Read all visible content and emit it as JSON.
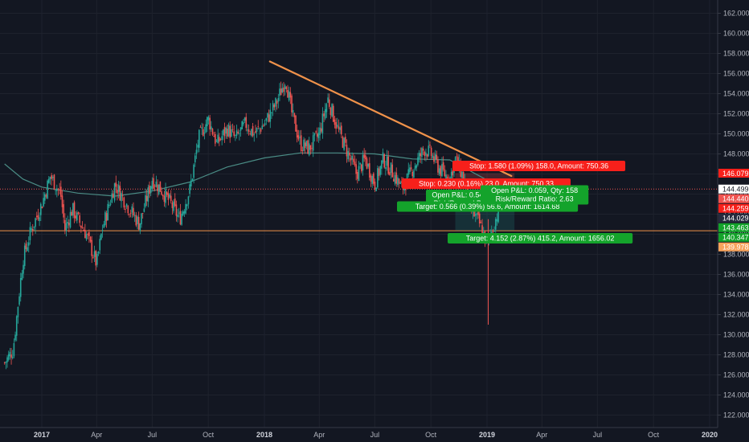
{
  "colors": {
    "background": "#131722",
    "grid": "#1e222d",
    "up": "#26a69a",
    "down": "#ef5350",
    "ma": "#4a8c85",
    "trendline": "#f0924a",
    "stop_red": "#f7201b",
    "target_green": "#14a32b",
    "axis_text": "#b2b5be"
  },
  "chart_data": {
    "type": "candlestick",
    "title": "",
    "xlabel": "",
    "ylabel": "",
    "ylim": [
      120.5,
      163.5
    ],
    "x_ticks": [
      {
        "label": "2017",
        "x": "2017-01"
      },
      {
        "label": "Apr",
        "x": "2017-04"
      },
      {
        "label": "Jul",
        "x": "2017-07"
      },
      {
        "label": "Oct",
        "x": "2017-10"
      },
      {
        "label": "2018",
        "x": "2018-01"
      },
      {
        "label": "Apr",
        "x": "2018-04"
      },
      {
        "label": "Jul",
        "x": "2018-07"
      },
      {
        "label": "Oct",
        "x": "2018-10"
      },
      {
        "label": "2019",
        "x": "2019-01"
      },
      {
        "label": "Apr",
        "x": "2019-04"
      },
      {
        "label": "Jul",
        "x": "2019-07"
      },
      {
        "label": "Oct",
        "x": "2019-10"
      },
      {
        "label": "2020",
        "x": "2020-01"
      }
    ],
    "y_ticks": [
      "122.000",
      "124.000",
      "126.000",
      "128.000",
      "130.000",
      "132.000",
      "134.000",
      "136.000",
      "138.000",
      "140.000",
      "142.000",
      "144.000",
      "146.000",
      "148.000",
      "150.000",
      "152.000",
      "154.000",
      "156.000",
      "158.000",
      "160.000",
      "162.000"
    ],
    "price_path": [
      {
        "x": "2016-11",
        "close": 127.2
      },
      {
        "x": "2016-11-15",
        "close": 128.5
      },
      {
        "x": "2016-12",
        "close": 137.5
      },
      {
        "x": "2016-12-15",
        "close": 140.5
      },
      {
        "x": "2017-01",
        "close": 143.0
      },
      {
        "x": "2017-01-15",
        "close": 145.8
      },
      {
        "x": "2017-02",
        "close": 144.0
      },
      {
        "x": "2017-02-08",
        "close": 140.5
      },
      {
        "x": "2017-02-20",
        "close": 142.5
      },
      {
        "x": "2017-03",
        "close": 141.5
      },
      {
        "x": "2017-03-15",
        "close": 140.0
      },
      {
        "x": "2017-04-01",
        "close": 137.0
      },
      {
        "x": "2017-04-10",
        "close": 140.5
      },
      {
        "x": "2017-05",
        "close": 145.0
      },
      {
        "x": "2017-05-20",
        "close": 143.0
      },
      {
        "x": "2017-06-10",
        "close": 141.0
      },
      {
        "x": "2017-07",
        "close": 145.5
      },
      {
        "x": "2017-07-15",
        "close": 144.5
      },
      {
        "x": "2017-08",
        "close": 143.0
      },
      {
        "x": "2017-08-15",
        "close": 141.5
      },
      {
        "x": "2017-09",
        "close": 144.5
      },
      {
        "x": "2017-09-15",
        "close": 149.5
      },
      {
        "x": "2017-10",
        "close": 151.5
      },
      {
        "x": "2017-10-15",
        "close": 149.0
      },
      {
        "x": "2017-11",
        "close": 150.5
      },
      {
        "x": "2017-11-15",
        "close": 149.5
      },
      {
        "x": "2017-12",
        "close": 151.0
      },
      {
        "x": "2017-12-15",
        "close": 150.0
      },
      {
        "x": "2018-01",
        "close": 151.0
      },
      {
        "x": "2018-01-20",
        "close": 153.0
      },
      {
        "x": "2018-02-05",
        "close": 155.5
      },
      {
        "x": "2018-02-15",
        "close": 152.0
      },
      {
        "x": "2018-03",
        "close": 149.0
      },
      {
        "x": "2018-03-15",
        "close": 148.5
      },
      {
        "x": "2018-04",
        "close": 150.0
      },
      {
        "x": "2018-04-15",
        "close": 153.5
      },
      {
        "x": "2018-05",
        "close": 150.5
      },
      {
        "x": "2018-05-15",
        "close": 148.5
      },
      {
        "x": "2018-06",
        "close": 146.0
      },
      {
        "x": "2018-06-15",
        "close": 147.5
      },
      {
        "x": "2018-07",
        "close": 145.0
      },
      {
        "x": "2018-07-15",
        "close": 147.5
      },
      {
        "x": "2018-08",
        "close": 146.0
      },
      {
        "x": "2018-08-15",
        "close": 144.5
      },
      {
        "x": "2018-09",
        "close": 146.5
      },
      {
        "x": "2018-09-20",
        "close": 148.5
      },
      {
        "x": "2018-10",
        "close": 148.0
      },
      {
        "x": "2018-10-15",
        "close": 146.5
      },
      {
        "x": "2018-11",
        "close": 145.5
      },
      {
        "x": "2018-11-10",
        "close": 147.5
      },
      {
        "x": "2018-11-25",
        "close": 145.5
      },
      {
        "x": "2018-12",
        "close": 143.0
      },
      {
        "x": "2018-12-20",
        "close": 141.0
      },
      {
        "x": "2019-01",
        "close": 139.0
      },
      {
        "x": "2019-01-10",
        "close": 140.5
      },
      {
        "x": "2019-01-20",
        "close": 142.5
      },
      {
        "x": "2019-02",
        "close": 144.0
      },
      {
        "x": "2019-02-15",
        "close": 143.5
      },
      {
        "x": "2019-03-01",
        "close": 144.0
      }
    ],
    "ma_path": [
      {
        "x": "2016-11",
        "value": 147.0
      },
      {
        "x": "2016-12",
        "value": 145.5
      },
      {
        "x": "2017-01",
        "value": 144.7
      },
      {
        "x": "2017-03",
        "value": 144.1
      },
      {
        "x": "2017-05",
        "value": 143.8
      },
      {
        "x": "2017-07",
        "value": 144.3
      },
      {
        "x": "2017-09",
        "value": 145.2
      },
      {
        "x": "2017-11",
        "value": 146.7
      },
      {
        "x": "2018-01",
        "value": 147.6
      },
      {
        "x": "2018-03",
        "value": 148.1
      },
      {
        "x": "2018-05",
        "value": 148.1
      },
      {
        "x": "2018-07",
        "value": 148.0
      },
      {
        "x": "2018-09",
        "value": 147.5
      },
      {
        "x": "2018-11",
        "value": 147.4
      },
      {
        "x": "2019-01",
        "value": 145.4
      },
      {
        "x": "2019-02-20",
        "value": 144.8
      }
    ],
    "spike_low": {
      "x": "2019-01-03",
      "value": 131.0
    },
    "trendline": {
      "x1": "2018-01-10",
      "y1": 157.2,
      "x2": "2019-02-10",
      "y2": 145.8
    },
    "horizontal_lines": [
      {
        "name": "level-upper",
        "value": 144.499,
        "style": "dotted",
        "color": "#ef5350"
      },
      {
        "name": "level-lower",
        "value": 140.347,
        "style": "solid",
        "color": "#f0924a"
      }
    ],
    "price_labels": [
      {
        "text": "146.079",
        "value": 146.079,
        "bg": "#f7201b"
      },
      {
        "text": "144.499",
        "value": 144.499,
        "bg": "#ffffff",
        "fg": "#131722"
      },
      {
        "text": "144.440",
        "value": 144.44,
        "bg": "#ef5350"
      },
      {
        "text": "144.259",
        "value": 144.259,
        "bg": "#f7201b"
      },
      {
        "text": "144.029",
        "value": 144.029,
        "bg": "#262b3e"
      },
      {
        "text": "143.463",
        "value": 143.463,
        "bg": "#14a32b"
      },
      {
        "text": "140.347",
        "value": 140.347,
        "bg": "#14a32b"
      },
      {
        "text": "139.978",
        "value": 139.978,
        "bg": "#f7a35c"
      }
    ],
    "positions": [
      {
        "name": "position-1",
        "entry": 144.499,
        "stop": 146.079,
        "target": 140.347,
        "x_start": "2018-11-10",
        "x_end": "2019-02-15",
        "stop_label": "Stop: 1.580 (1.09%) 158.0, Amount: 750.36",
        "target_label": "Target: 4.152 (2.87%) 415.2, Amount: 1656.02",
        "pnl_label": "Open P&L: 0.059, Qty: 158",
        "rr_label": "Risk/Reward Ratio: 2.63"
      },
      {
        "name": "position-2",
        "entry": 144.029,
        "stop": 144.259,
        "target": 143.463,
        "x_start": "2018-10-10",
        "x_end": "2018-12-01",
        "stop_label": "Stop: 0.230 (0.16%) 23.0, Amount: 750.33",
        "target_label": "Target: 0.566 (0.39%) 56.6, Amount: 1614.68",
        "pnl_label": "Open P&L: 0.54",
        "rr_label": "Risk/Reward R"
      }
    ]
  }
}
